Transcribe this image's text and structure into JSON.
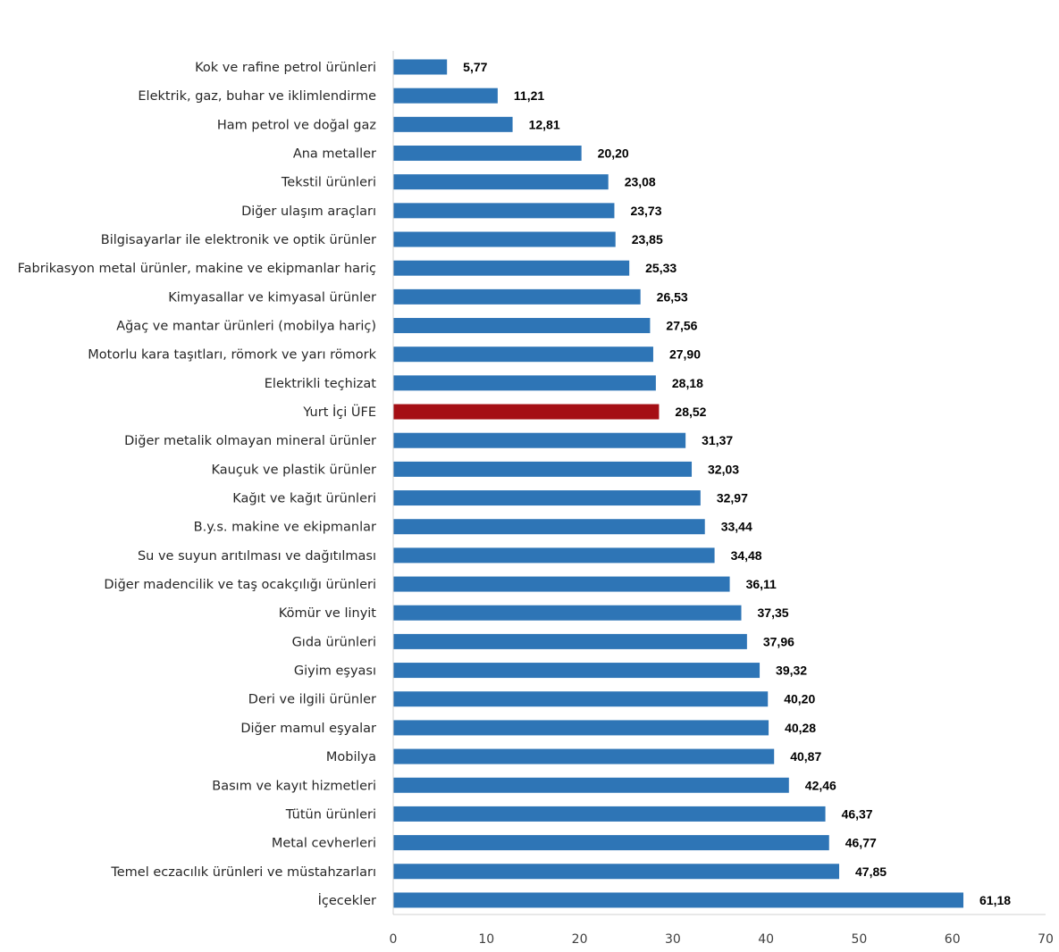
{
  "chart_data": {
    "type": "bar",
    "orientation": "horizontal",
    "title": "",
    "xlabel": "",
    "ylabel": "",
    "xlim": [
      0,
      70
    ],
    "xticks": [
      0,
      10,
      20,
      30,
      40,
      50,
      60,
      70
    ],
    "grid": false,
    "legend": "none",
    "colors": {
      "default": "#2E75B6",
      "highlight": "#A50F15"
    },
    "highlight_category": "Yurt İçi ÜFE",
    "categories": [
      "Kok ve rafine petrol ürünleri",
      "Elektrik, gaz, buhar ve iklimlendirme",
      "Ham petrol ve doğal gaz",
      "Ana metaller",
      "Tekstil ürünleri",
      "Diğer ulaşım araçları",
      "Bilgisayarlar ile elektronik ve optik ürünler",
      "Fabrikasyon metal ürünler, makine ve ekipmanlar hariç",
      "Kimyasallar ve kimyasal ürünler",
      "Ağaç ve mantar ürünleri (mobilya hariç)",
      "Motorlu kara taşıtları, römork ve yarı römork",
      "Elektrikli teçhizat",
      "Yurt İçi ÜFE",
      "Diğer metalik olmayan mineral ürünler",
      "Kauçuk ve plastik ürünler",
      "Kağıt ve kağıt ürünleri",
      "B.y.s. makine ve ekipmanlar",
      "Su ve suyun arıtılması ve dağıtılması",
      "Diğer madencilik ve taş ocakçılığı ürünleri",
      "Kömür ve linyit",
      "Gıda ürünleri",
      "Giyim eşyası",
      "Deri ve ilgili ürünler",
      "Diğer mamul eşyalar",
      "Mobilya",
      "Basım ve kayıt hizmetleri",
      "Tütün ürünleri",
      "Metal cevherleri",
      "Temel eczacılık ürünleri ve müstahzarları",
      "İçecekler"
    ],
    "values": [
      5.77,
      11.21,
      12.81,
      20.2,
      23.08,
      23.73,
      23.85,
      25.33,
      26.53,
      27.56,
      27.9,
      28.18,
      28.52,
      31.37,
      32.03,
      32.97,
      33.44,
      34.48,
      36.11,
      37.35,
      37.96,
      39.32,
      40.2,
      40.28,
      40.87,
      42.46,
      46.37,
      46.77,
      47.85,
      61.18
    ],
    "value_labels": [
      "5,77",
      "11,21",
      "12,81",
      "20,20",
      "23,08",
      "23,73",
      "23,85",
      "25,33",
      "26,53",
      "27,56",
      "27,90",
      "28,18",
      "28,52",
      "31,37",
      "32,03",
      "32,97",
      "33,44",
      "34,48",
      "36,11",
      "37,35",
      "37,96",
      "39,32",
      "40,20",
      "40,28",
      "40,87",
      "42,46",
      "46,37",
      "46,77",
      "47,85",
      "61,18"
    ]
  }
}
